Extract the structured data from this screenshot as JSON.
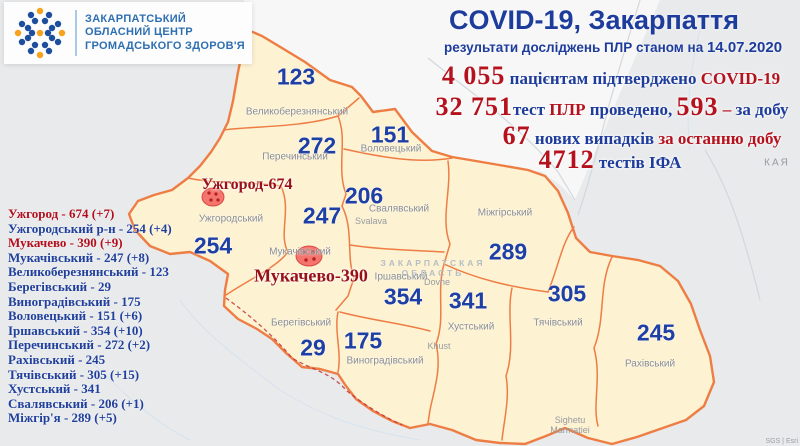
{
  "logo": {
    "org_lines": [
      "ЗАКАРПАТСЬКИЙ",
      "ОБЛАСНИЙ ЦЕНТР",
      "ГРОМАДСЬКОГО ЗДОРОВ'Я"
    ],
    "colors": {
      "dot_blue": "#1d4e9e",
      "dot_orange": "#f6a21d"
    }
  },
  "header": {
    "title": "COVID-19, Закарпаття",
    "subtitle": "результати досліджень ПЛР станом на ",
    "date": "14.07.2020"
  },
  "stats": {
    "lines": [
      {
        "segments": [
          {
            "t": "4 055",
            "k": "big"
          },
          {
            "t": " пацієнтам підтверджено ",
            "k": "navy"
          },
          {
            "t": "COVID-19",
            "k": "red"
          }
        ]
      },
      {
        "segments": [
          {
            "t": "32 751",
            "k": "big"
          },
          {
            "t": "тест ",
            "k": "navy"
          },
          {
            "t": "ПЛР",
            "k": "red"
          },
          {
            "t": " проведено, ",
            "k": "navy"
          },
          {
            "t": "593",
            "k": "big"
          },
          {
            "t": " – ",
            "k": "red"
          },
          {
            "t": "за добу",
            "k": "navy"
          }
        ]
      },
      {
        "segments": [
          {
            "t": "67",
            "k": "big"
          },
          {
            "t": " нових випадків ",
            "k": "navy"
          },
          {
            "t": "за останню добу",
            "k": "red"
          }
        ]
      },
      {
        "segments": [
          {
            "t": "4712",
            "k": "big"
          },
          {
            "t": " тестів ІФА",
            "k": "navy"
          }
        ]
      }
    ]
  },
  "district_list": [
    {
      "label": "Ужгород - 674 (+7)",
      "highlight": true
    },
    {
      "label": "Ужгородський р-н - 254 (+4)",
      "highlight": false
    },
    {
      "label": "Мукачево - 390 (+9)",
      "highlight": true
    },
    {
      "label": "Мукачівський - 247 (+8)",
      "highlight": false
    },
    {
      "label": "Великоберезнянський - 123",
      "highlight": false
    },
    {
      "label": "Берегівський - 29",
      "highlight": false
    },
    {
      "label": "Виноградівський - 175",
      "highlight": false
    },
    {
      "label": "Воловецький - 151 (+6)",
      "highlight": false
    },
    {
      "label": "Іршавський - 354 (+10)",
      "highlight": false
    },
    {
      "label": "Перечинський - 272 (+2)",
      "highlight": false
    },
    {
      "label": "Рахівський - 245",
      "highlight": false
    },
    {
      "label": "Тячівський - 305 (+15)",
      "highlight": false
    },
    {
      "label": "Хустський - 341",
      "highlight": false
    },
    {
      "label": "Свалявський - 206 (+1)",
      "highlight": false
    },
    {
      "label": "Міжгір'я - 289 (+5)",
      "highlight": false
    }
  ],
  "map": {
    "districts": [
      {
        "name": "Великоберезнянський",
        "value": "123"
      },
      {
        "name": "Перечинський",
        "value": "272"
      },
      {
        "name": "Воловецький",
        "value": "151"
      },
      {
        "name": "Свалявський",
        "value": "206"
      },
      {
        "name": "Ужгородський",
        "value": "254"
      },
      {
        "name": "Мукачівський",
        "value": "247"
      },
      {
        "name": "Міжгірський",
        "value": "289"
      },
      {
        "name": "Іршавський",
        "value": "354"
      },
      {
        "name": "Берегівський",
        "value": "29"
      },
      {
        "name": "Виноградівський",
        "value": "175"
      },
      {
        "name": "Хустський",
        "value": "341"
      },
      {
        "name": "Тячівський",
        "value": "305"
      },
      {
        "name": "Рахівський",
        "value": "245"
      }
    ],
    "cities": [
      {
        "label": "Ужгород-674"
      },
      {
        "label": "Мукачево-390"
      }
    ],
    "small_labels": [
      "Svalava",
      "Dovhe",
      "Khust",
      "Sighetu",
      "Marmatiei",
      "КАЯ"
    ],
    "watermark": [
      "ЗАКАРПАТСКАЯ",
      "ОБЛАСТЬ"
    ],
    "attribution": "SGS | Esri",
    "colors": {
      "region_fill": "#fdf2d2",
      "border_orange": "#ee7d44",
      "number_blue": "#1d3fa6",
      "accent_red": "#b5121d"
    }
  }
}
